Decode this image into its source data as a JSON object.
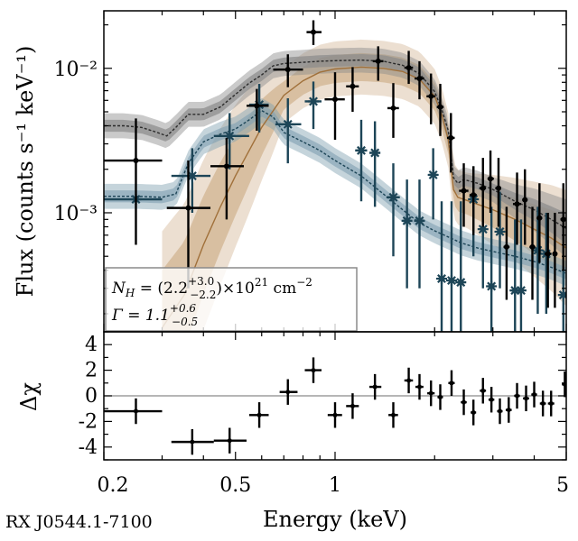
{
  "source_label": "RX J0544.1-7100",
  "colors": {
    "total_model": "#2b2b2b",
    "total_band": "#8a8a8a",
    "soft_data": "#1d4557",
    "soft_band": "#7f9fb0",
    "hard_model": "#a0703a",
    "hard_band": "#c8a47a",
    "residual": "#000000"
  },
  "chart_data": [
    {
      "type": "scatter",
      "panel": "spectrum",
      "xlabel": "Energy (keV)",
      "ylabel": "Flux (counts s⁻¹ keV⁻¹)",
      "xscale": "log",
      "yscale": "log",
      "xlim": [
        0.2,
        5
      ],
      "ylim": [
        0.00015,
        0.025
      ],
      "ytick_labels": [
        "10⁻³",
        "10⁻²"
      ],
      "ytick_values": [
        0.001,
        0.01
      ],
      "legend": {
        "placement": "bottom-left",
        "line1_prefix": "N",
        "line1_sub": "H",
        "line1_eq": " = (2.2",
        "line1_sup": "+3.0",
        "line1_subval": "−2.2",
        "line1_suffix": ")×10",
        "line1_exp": "21",
        "line1_unit": " cm",
        "line1_unit_exp": "−2",
        "line2_prefix": "Γ = 1.1",
        "line2_sup": "+0.6",
        "line2_subval": "−0.5"
      },
      "series": [
        {
          "name": "total data (black)",
          "points": [
            {
              "x": 0.25,
              "xlo": 0.2,
              "xhi": 0.3,
              "y": 0.0023,
              "ylo": 0.0006,
              "yhi": 0.0045
            },
            {
              "x": 0.36,
              "xlo": 0.31,
              "xhi": 0.42,
              "y": 0.00108,
              "ylo": 0.0003,
              "yhi": 0.0023
            },
            {
              "x": 0.47,
              "xlo": 0.42,
              "xhi": 0.53,
              "y": 0.0021,
              "ylo": 0.0009,
              "yhi": 0.0033
            },
            {
              "x": 0.58,
              "xlo": 0.54,
              "xhi": 0.63,
              "y": 0.0055,
              "ylo": 0.0037,
              "yhi": 0.0072
            },
            {
              "x": 0.72,
              "xlo": 0.65,
              "xhi": 0.8,
              "y": 0.0098,
              "ylo": 0.0074,
              "yhi": 0.0125
            },
            {
              "x": 0.86,
              "xlo": 0.82,
              "xhi": 0.91,
              "y": 0.0178,
              "ylo": 0.0145,
              "yhi": 0.0215
            },
            {
              "x": 1.0,
              "xlo": 0.93,
              "xhi": 1.07,
              "y": 0.0061,
              "ylo": 0.0032,
              "yhi": 0.0094
            },
            {
              "x": 1.13,
              "xlo": 1.08,
              "xhi": 1.18,
              "y": 0.0075,
              "ylo": 0.005,
              "yhi": 0.0102
            },
            {
              "x": 1.35,
              "xlo": 1.3,
              "xhi": 1.4,
              "y": 0.0112,
              "ylo": 0.0082,
              "yhi": 0.0142
            },
            {
              "x": 1.5,
              "xlo": 1.44,
              "xhi": 1.56,
              "y": 0.0053,
              "ylo": 0.0033,
              "yhi": 0.0079
            },
            {
              "x": 1.67,
              "xlo": 1.62,
              "xhi": 1.72,
              "y": 0.0101,
              "ylo": 0.0078,
              "yhi": 0.0132
            },
            {
              "x": 1.8,
              "xlo": 1.74,
              "xhi": 1.86,
              "y": 0.0085,
              "ylo": 0.0061,
              "yhi": 0.0112
            },
            {
              "x": 1.95,
              "xlo": 1.89,
              "xhi": 2.01,
              "y": 0.0064,
              "ylo": 0.0041,
              "yhi": 0.0092
            },
            {
              "x": 2.08,
              "xlo": 2.03,
              "xhi": 2.13,
              "y": 0.0054,
              "ylo": 0.0034,
              "yhi": 0.0078
            },
            {
              "x": 2.24,
              "xlo": 2.18,
              "xhi": 2.3,
              "y": 0.0033,
              "ylo": 0.0019,
              "yhi": 0.0049
            },
            {
              "x": 2.45,
              "xlo": 2.37,
              "xhi": 2.53,
              "y": 0.00142,
              "ylo": 0.0008,
              "yhi": 0.0022
            },
            {
              "x": 2.62,
              "xlo": 2.55,
              "xhi": 2.68,
              "y": 0.00133,
              "ylo": 0.0007,
              "yhi": 0.0021
            },
            {
              "x": 2.8,
              "xlo": 2.73,
              "xhi": 2.86,
              "y": 0.00148,
              "ylo": 0.0008,
              "yhi": 0.0024
            },
            {
              "x": 2.95,
              "xlo": 2.89,
              "xhi": 3.02,
              "y": 0.00172,
              "ylo": 0.001,
              "yhi": 0.0027
            },
            {
              "x": 3.12,
              "xlo": 3.05,
              "xhi": 3.18,
              "y": 0.00148,
              "ylo": 0.0008,
              "yhi": 0.0024
            },
            {
              "x": 3.3,
              "xlo": 3.23,
              "xhi": 3.37,
              "y": 0.00058,
              "ylo": 0.00025,
              "yhi": 0.0011
            },
            {
              "x": 3.55,
              "xlo": 3.45,
              "xhi": 3.65,
              "y": 0.00115,
              "ylo": 0.0006,
              "yhi": 0.0019
            },
            {
              "x": 3.75,
              "xlo": 3.68,
              "xhi": 3.82,
              "y": 0.00123,
              "ylo": 0.0006,
              "yhi": 0.002
            },
            {
              "x": 3.95,
              "xlo": 3.87,
              "xhi": 4.03,
              "y": 0.00058,
              "ylo": 0.00025,
              "yhi": 0.0011
            },
            {
              "x": 4.15,
              "xlo": 4.07,
              "xhi": 4.23,
              "y": 0.00092,
              "ylo": 0.00045,
              "yhi": 0.0016
            },
            {
              "x": 4.4,
              "xlo": 4.3,
              "xhi": 4.5,
              "y": 0.00052,
              "ylo": 0.00022,
              "yhi": 0.001
            },
            {
              "x": 4.62,
              "xlo": 4.55,
              "xhi": 4.7,
              "y": 0.00052,
              "ylo": 0.00022,
              "yhi": 0.001
            },
            {
              "x": 4.9,
              "xlo": 4.8,
              "xhi": 5.0,
              "y": 0.0009,
              "ylo": 0.0004,
              "yhi": 0.0016
            }
          ]
        },
        {
          "name": "soft component data (dark teal)",
          "points": [
            {
              "x": 0.25,
              "xlo": 0.2,
              "xhi": 0.3,
              "y": 0.00124
            },
            {
              "x": 0.37,
              "xlo": 0.32,
              "xhi": 0.42,
              "y": 0.0018,
              "ylo": 0.001,
              "yhi": 0.0028
            },
            {
              "x": 0.48,
              "xlo": 0.43,
              "xhi": 0.55,
              "y": 0.0034,
              "ylo": 0.002,
              "yhi": 0.0049
            },
            {
              "x": 0.59,
              "xlo": 0.55,
              "xhi": 0.63,
              "y": 0.0056,
              "ylo": 0.0036,
              "yhi": 0.0078
            },
            {
              "x": 0.72,
              "xlo": 0.66,
              "xhi": 0.79,
              "y": 0.0041,
              "ylo": 0.0022,
              "yhi": 0.0062
            },
            {
              "x": 0.86,
              "xlo": 0.81,
              "xhi": 0.91,
              "y": 0.0059,
              "ylo": 0.0038,
              "yhi": 0.0081
            },
            {
              "x": 1.2,
              "xlo": 1.15,
              "xhi": 1.25,
              "y": 0.0027,
              "ylo": 0.0012,
              "yhi": 0.0044
            },
            {
              "x": 1.32,
              "xlo": 1.27,
              "xhi": 1.37,
              "y": 0.0026,
              "ylo": 0.0011,
              "yhi": 0.0043
            },
            {
              "x": 1.5,
              "xlo": 1.43,
              "xhi": 1.57,
              "y": 0.00128,
              "ylo": 0.0005,
              "yhi": 0.0022
            },
            {
              "x": 1.65,
              "xlo": 1.6,
              "xhi": 1.7,
              "y": 0.00088,
              "ylo": 0.0003,
              "yhi": 0.0017
            },
            {
              "x": 1.8,
              "xlo": 1.74,
              "xhi": 1.86,
              "y": 0.00088,
              "ylo": 0.0003,
              "yhi": 0.0017
            },
            {
              "x": 1.98,
              "xlo": 1.92,
              "xhi": 2.04,
              "y": 0.00183,
              "ylo": 0.0009,
              "yhi": 0.0028
            },
            {
              "x": 2.1,
              "xlo": 2.05,
              "xhi": 2.15,
              "y": 0.00035,
              "ylo": 0.00015,
              "yhi": 0.0012
            },
            {
              "x": 2.25,
              "xlo": 2.19,
              "xhi": 2.31,
              "y": 0.00034,
              "ylo": 0.00015,
              "yhi": 0.0012
            },
            {
              "x": 2.4,
              "xlo": 2.34,
              "xhi": 2.46,
              "y": 0.00033,
              "ylo": 0.00015,
              "yhi": 0.0012
            },
            {
              "x": 2.62,
              "xlo": 2.55,
              "xhi": 2.68,
              "y": 0.00124,
              "ylo": 0.0005,
              "yhi": 0.0021
            },
            {
              "x": 2.8,
              "xlo": 2.73,
              "xhi": 2.86,
              "y": 0.00077,
              "ylo": 0.0003,
              "yhi": 0.0014
            },
            {
              "x": 2.97,
              "xlo": 2.9,
              "xhi": 3.04,
              "y": 0.00031,
              "ylo": 0.00015,
              "yhi": 0.0011
            },
            {
              "x": 3.15,
              "xlo": 3.08,
              "xhi": 3.22,
              "y": 0.00074,
              "ylo": 0.0003,
              "yhi": 0.0014
            },
            {
              "x": 3.5,
              "xlo": 3.4,
              "xhi": 3.6,
              "y": 0.00029,
              "ylo": 0.00015,
              "yhi": 0.0009
            },
            {
              "x": 3.65,
              "xlo": 3.58,
              "xhi": 3.72,
              "y": 0.00029,
              "ylo": 0.00015,
              "yhi": 0.0009
            },
            {
              "x": 4.1,
              "xlo": 4.0,
              "xhi": 4.2,
              "y": 0.00055,
              "ylo": 0.0002,
              "yhi": 0.0011
            },
            {
              "x": 4.35,
              "xlo": 4.25,
              "xhi": 4.45,
              "y": 0.00052,
              "ylo": 0.0002,
              "yhi": 0.001
            },
            {
              "x": 4.9,
              "xlo": 4.8,
              "xhi": 5.0,
              "y": 0.00027,
              "ylo": 0.00015,
              "yhi": 0.0008
            }
          ]
        }
      ],
      "model_curves": [
        {
          "name": "total model",
          "x": [
            0.2,
            0.23,
            0.26,
            0.29,
            0.31,
            0.33,
            0.36,
            0.4,
            0.45,
            0.5,
            0.55,
            0.6,
            0.65,
            0.7,
            0.8,
            0.9,
            1.0,
            1.2,
            1.4,
            1.6,
            1.8,
            2.0,
            2.1,
            2.2,
            2.28,
            2.35,
            2.45,
            2.7,
            3.0,
            3.5,
            4.0,
            4.5,
            5.0
          ],
          "y": [
            0.004,
            0.004,
            0.0039,
            0.0036,
            0.0034,
            0.0039,
            0.0048,
            0.0048,
            0.0054,
            0.0066,
            0.0079,
            0.009,
            0.0104,
            0.0108,
            0.011,
            0.0112,
            0.0113,
            0.0114,
            0.0112,
            0.0105,
            0.0092,
            0.0069,
            0.0052,
            0.0037,
            0.00175,
            0.0016,
            0.0017,
            0.0016,
            0.00145,
            0.0012,
            0.00105,
            0.0009,
            0.00078
          ]
        },
        {
          "name": "soft model",
          "x": [
            0.2,
            0.25,
            0.3,
            0.33,
            0.36,
            0.4,
            0.45,
            0.5,
            0.55,
            0.6,
            0.65,
            0.7,
            0.8,
            0.9,
            1.0,
            1.2,
            1.4,
            1.6,
            1.8,
            2.0,
            2.2,
            2.4,
            2.7,
            3.0,
            3.5,
            4.0,
            4.5,
            5.0
          ],
          "y": [
            0.0013,
            0.0013,
            0.00128,
            0.00135,
            0.0022,
            0.0031,
            0.0035,
            0.0038,
            0.0044,
            0.0051,
            0.0046,
            0.0036,
            0.0031,
            0.0027,
            0.0023,
            0.0018,
            0.00135,
            0.00105,
            0.00085,
            0.00075,
            0.00068,
            0.00062,
            0.00057,
            0.00054,
            0.0005,
            0.00046,
            0.00042,
            0.00038
          ]
        },
        {
          "name": "absorbed power-law model",
          "x": [
            0.3,
            0.35,
            0.4,
            0.45,
            0.5,
            0.55,
            0.6,
            0.7,
            0.8,
            0.9,
            1.0,
            1.2,
            1.4,
            1.6,
            1.8,
            2.0,
            2.1,
            2.2,
            2.28,
            2.35,
            2.5,
            3.0,
            3.5,
            4.0,
            4.5,
            5.0
          ],
          "y": [
            0.00016,
            0.00027,
            0.0006,
            0.0011,
            0.0018,
            0.0027,
            0.0039,
            0.0065,
            0.0082,
            0.0094,
            0.0099,
            0.0102,
            0.01,
            0.0095,
            0.0084,
            0.0064,
            0.0048,
            0.0032,
            0.00145,
            0.00128,
            0.00122,
            0.00105,
            0.0009,
            0.00077,
            0.00067,
            0.00057
          ]
        }
      ]
    },
    {
      "type": "scatter",
      "panel": "residuals",
      "xlabel": "Energy (keV)",
      "ylabel": "Δχ",
      "xscale": "log",
      "xlim": [
        0.2,
        5
      ],
      "ylim": [
        -5,
        5
      ],
      "yticks": [
        -4,
        -2,
        0,
        2,
        4
      ],
      "ytick_labels": [
        "-4",
        "-2",
        "0",
        "2",
        "4"
      ],
      "xticks": [
        0.2,
        0.5,
        1,
        5
      ],
      "xtick_labels": [
        "0.2",
        "0.5",
        "1",
        "5"
      ],
      "points": [
        {
          "x": 0.25,
          "xlo": 0.2,
          "xhi": 0.3,
          "y": -1.2,
          "ylo": -2.2,
          "yhi": -0.2
        },
        {
          "x": 0.37,
          "xlo": 0.32,
          "xhi": 0.43,
          "y": -3.6,
          "ylo": -4.6,
          "yhi": -2.6
        },
        {
          "x": 0.48,
          "xlo": 0.43,
          "xhi": 0.54,
          "y": -3.5,
          "ylo": -4.5,
          "yhi": -2.5
        },
        {
          "x": 0.59,
          "xlo": 0.55,
          "xhi": 0.63,
          "y": -1.5,
          "ylo": -2.5,
          "yhi": -0.5
        },
        {
          "x": 0.72,
          "xlo": 0.68,
          "xhi": 0.77,
          "y": 0.3,
          "ylo": -0.7,
          "yhi": 1.3
        },
        {
          "x": 0.86,
          "xlo": 0.81,
          "xhi": 0.91,
          "y": 2.0,
          "ylo": 1.0,
          "yhi": 3.0
        },
        {
          "x": 1.0,
          "xlo": 0.95,
          "xhi": 1.05,
          "y": -1.5,
          "ylo": -2.5,
          "yhi": -0.5
        },
        {
          "x": 1.13,
          "xlo": 1.08,
          "xhi": 1.18,
          "y": -0.8,
          "ylo": -1.8,
          "yhi": 0.2
        },
        {
          "x": 1.32,
          "xlo": 1.27,
          "xhi": 1.38,
          "y": 0.7,
          "ylo": -0.3,
          "yhi": 1.7
        },
        {
          "x": 1.5,
          "xlo": 1.45,
          "xhi": 1.55,
          "y": -1.5,
          "ylo": -2.5,
          "yhi": -0.5
        },
        {
          "x": 1.67,
          "xlo": 1.62,
          "xhi": 1.72,
          "y": 1.2,
          "ylo": 0.2,
          "yhi": 2.2
        },
        {
          "x": 1.8,
          "xlo": 1.75,
          "xhi": 1.85,
          "y": 0.7,
          "ylo": -0.3,
          "yhi": 1.7
        },
        {
          "x": 1.95,
          "xlo": 1.9,
          "xhi": 2.0,
          "y": 0.2,
          "ylo": -0.8,
          "yhi": 1.2
        },
        {
          "x": 2.08,
          "xlo": 2.04,
          "xhi": 2.12,
          "y": -0.1,
          "ylo": -1.1,
          "yhi": 0.9
        },
        {
          "x": 2.25,
          "xlo": 2.2,
          "xhi": 2.3,
          "y": 1.0,
          "ylo": 0.0,
          "yhi": 2.0
        },
        {
          "x": 2.45,
          "xlo": 2.4,
          "xhi": 2.5,
          "y": -0.5,
          "ylo": -1.5,
          "yhi": 0.5
        },
        {
          "x": 2.62,
          "xlo": 2.57,
          "xhi": 2.67,
          "y": -1.3,
          "ylo": -2.3,
          "yhi": -0.3
        },
        {
          "x": 2.8,
          "xlo": 2.74,
          "xhi": 2.86,
          "y": 0.4,
          "ylo": -0.6,
          "yhi": 1.4
        },
        {
          "x": 2.97,
          "xlo": 2.91,
          "xhi": 3.03,
          "y": -0.3,
          "ylo": -1.3,
          "yhi": 0.7
        },
        {
          "x": 3.15,
          "xlo": 3.09,
          "xhi": 3.21,
          "y": -1.2,
          "ylo": -2.2,
          "yhi": -0.2
        },
        {
          "x": 3.35,
          "xlo": 3.28,
          "xhi": 3.42,
          "y": -1.1,
          "ylo": -2.1,
          "yhi": -0.1
        },
        {
          "x": 3.55,
          "xlo": 3.48,
          "xhi": 3.62,
          "y": 0.0,
          "ylo": -1.0,
          "yhi": 1.0
        },
        {
          "x": 3.78,
          "xlo": 3.7,
          "xhi": 3.86,
          "y": -0.2,
          "ylo": -1.2,
          "yhi": 0.8
        },
        {
          "x": 4.0,
          "xlo": 3.92,
          "xhi": 4.08,
          "y": 0.1,
          "ylo": -0.9,
          "yhi": 1.1
        },
        {
          "x": 4.25,
          "xlo": 4.16,
          "xhi": 4.34,
          "y": -0.6,
          "ylo": -1.6,
          "yhi": 0.4
        },
        {
          "x": 4.5,
          "xlo": 4.4,
          "xhi": 4.6,
          "y": -0.6,
          "ylo": -1.6,
          "yhi": 0.4
        },
        {
          "x": 4.95,
          "xlo": 4.85,
          "xhi": 5.0,
          "y": 0.9,
          "ylo": -0.1,
          "yhi": 1.9
        }
      ]
    }
  ]
}
